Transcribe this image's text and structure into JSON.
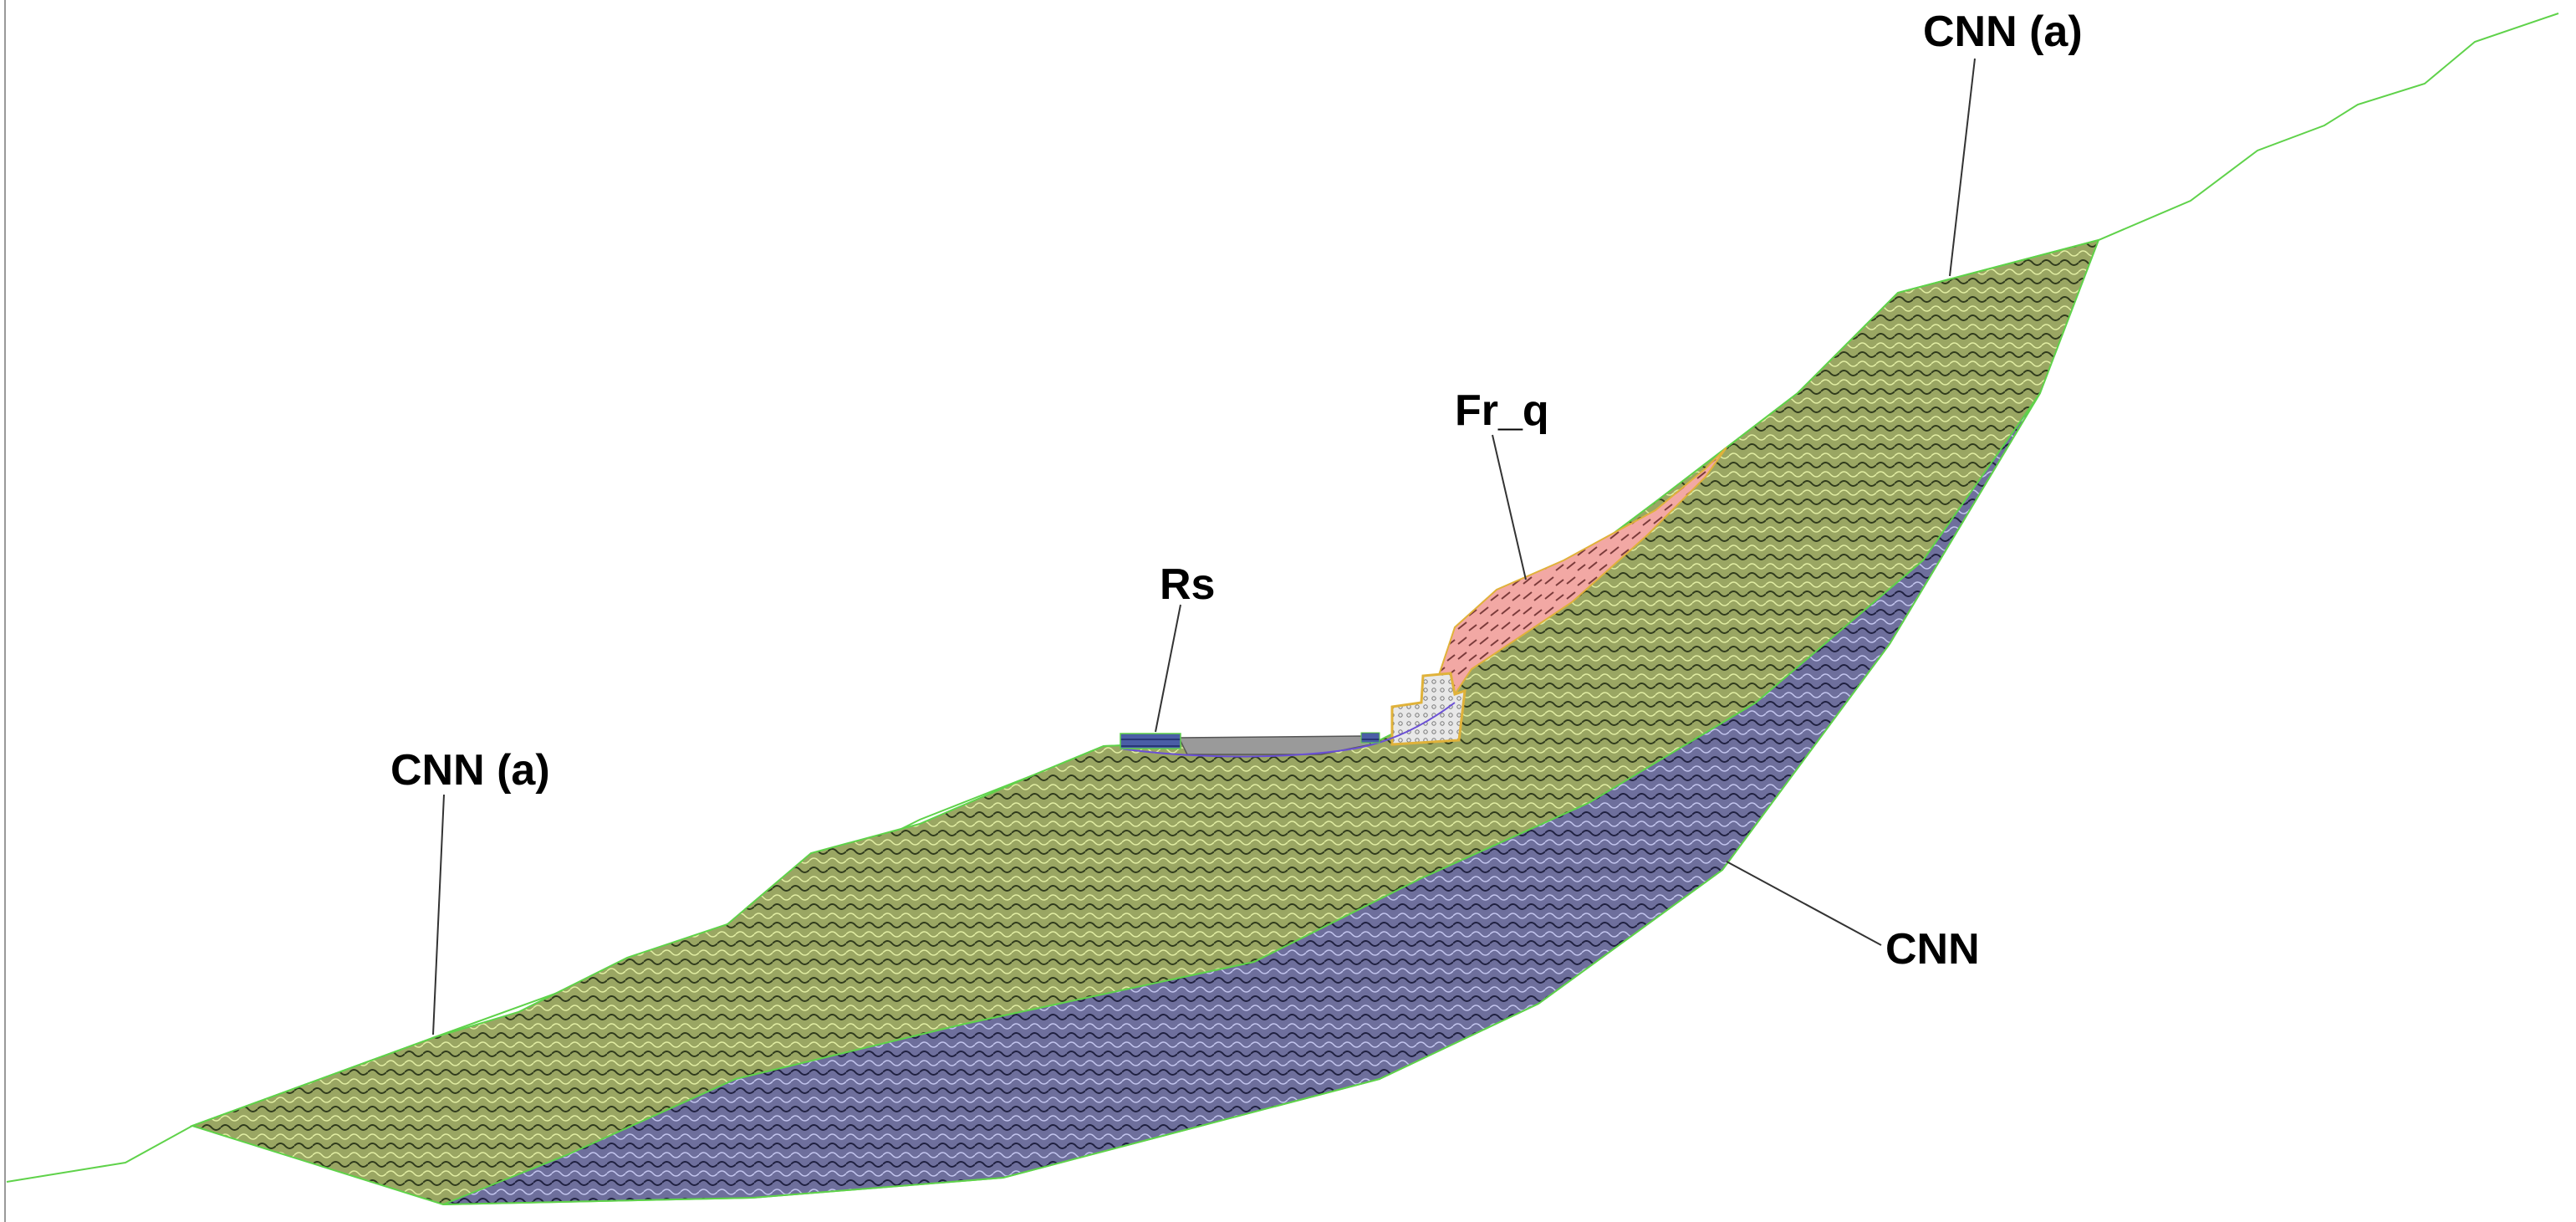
{
  "labels": {
    "cnn_a_top": "CNN (a)",
    "cnn_a_left": "CNN (a)",
    "fr_q": "Fr_q",
    "rs": "Rs",
    "cnn": "CNN"
  },
  "colors": {
    "cnn_a_fill": "#9aa663",
    "cnn_fill": "#6e6f9c",
    "fr_q_fill": "#f2a8a4",
    "rs_fill": "#4a5ea6",
    "structure_fill": "#e8e8e8",
    "road_fill": "#9a9a9a",
    "outline": "#5fd24a",
    "structure_outline": "#e0b23a",
    "slip_surface": "#6a4fd6"
  }
}
